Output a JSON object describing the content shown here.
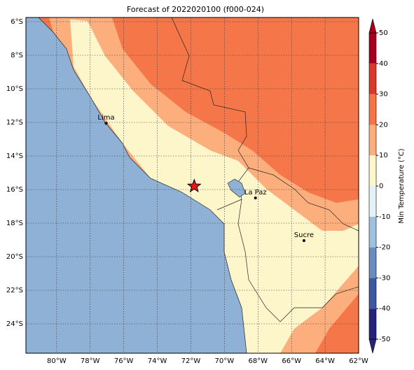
{
  "title": "Forecast of 2022020100 (f000-024)",
  "map": {
    "lonlim": [
      -81.83,
      -62
    ],
    "latlim": [
      -25.75,
      -5.75
    ],
    "xticks": [
      {
        "value": -80,
        "label": "80°W"
      },
      {
        "value": -78,
        "label": "78°W"
      },
      {
        "value": -76,
        "label": "76°W"
      },
      {
        "value": -74,
        "label": "74°W"
      },
      {
        "value": -72,
        "label": "72°W"
      },
      {
        "value": -70,
        "label": "70°W"
      },
      {
        "value": -68,
        "label": "68°W"
      },
      {
        "value": -66,
        "label": "66°W"
      },
      {
        "value": -64,
        "label": "64°W"
      },
      {
        "value": -62,
        "label": "62°W"
      }
    ],
    "yticks": [
      {
        "value": -6,
        "label": "6°S"
      },
      {
        "value": -8,
        "label": "8°S"
      },
      {
        "value": -10,
        "label": "10°S"
      },
      {
        "value": -12,
        "label": "12°S"
      },
      {
        "value": -14,
        "label": "14°S"
      },
      {
        "value": -16,
        "label": "16°S"
      },
      {
        "value": -18,
        "label": "18°S"
      },
      {
        "value": -20,
        "label": "20°S"
      },
      {
        "value": -22,
        "label": "22°S"
      },
      {
        "value": -24,
        "label": "24°S"
      }
    ],
    "cities": [
      {
        "name": "Lima",
        "lon": -77.05,
        "lat": -12.05
      },
      {
        "name": "La Paz",
        "lon": -68.15,
        "lat": -16.5
      },
      {
        "name": "Sucre",
        "lon": -65.26,
        "lat": -19.04
      }
    ],
    "star": {
      "lon": -71.8,
      "lat": -15.8,
      "color": "#e8141c"
    }
  },
  "colorbar": {
    "label": "Min Temperature (°C)",
    "levels": [
      -50,
      -40,
      -30,
      -20,
      -10,
      0,
      10,
      20,
      30,
      40,
      50
    ],
    "colors": [
      "#26247c",
      "#3d5a9e",
      "#6a8dc0",
      "#9ec1de",
      "#e3f2f6",
      "#fdf6cb",
      "#fcae7c",
      "#f47446",
      "#d9382a",
      "#a7001f"
    ],
    "ticks": [
      50,
      40,
      30,
      20,
      10,
      0,
      -10,
      -20,
      -30,
      -40,
      -50
    ]
  }
}
